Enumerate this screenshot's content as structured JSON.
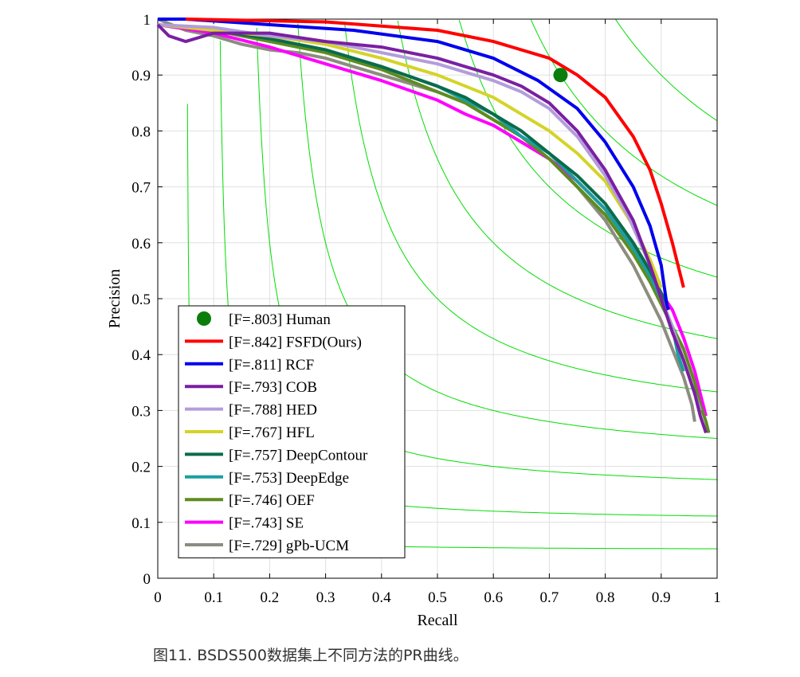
{
  "caption": "图11. BSDS500数据集上不同方法的PR曲线。",
  "chart_data": {
    "type": "line",
    "xlabel": "Recall",
    "ylabel": "Precision",
    "xlim": [
      0,
      1
    ],
    "ylim": [
      0,
      1
    ],
    "xticks": [
      "0",
      "0.1",
      "0.2",
      "0.3",
      "0.4",
      "0.5",
      "0.6",
      "0.7",
      "0.8",
      "0.9",
      "1"
    ],
    "yticks": [
      "0",
      "0.1",
      "0.2",
      "0.3",
      "0.4",
      "0.5",
      "0.6",
      "0.7",
      "0.8",
      "0.9",
      "1"
    ],
    "grid": true,
    "legend_position": "bottom-left",
    "iso_f_color": "#00dd00",
    "iso_f_contours": [
      0.1,
      0.2,
      0.3,
      0.4,
      0.5,
      0.6,
      0.7,
      0.8,
      0.9
    ],
    "human": {
      "label": "[F=.803] Human",
      "recall": 0.72,
      "precision": 0.9,
      "color": "#0a7d0a"
    },
    "series": [
      {
        "name": "[F=.842] FSFD(Ours)",
        "color": "#ff0000",
        "x": [
          0.05,
          0.3,
          0.5,
          0.6,
          0.7,
          0.75,
          0.8,
          0.85,
          0.88,
          0.9,
          0.92,
          0.94
        ],
        "y": [
          1,
          0.995,
          0.98,
          0.96,
          0.93,
          0.9,
          0.86,
          0.79,
          0.73,
          0.67,
          0.6,
          0.52
        ]
      },
      {
        "name": "[F=.811] RCF",
        "color": "#0000ee",
        "x": [
          0,
          0.05,
          0.2,
          0.35,
          0.5,
          0.6,
          0.68,
          0.75,
          0.8,
          0.85,
          0.88,
          0.9,
          0.91,
          0.913
        ],
        "y": [
          1,
          1,
          0.99,
          0.98,
          0.96,
          0.93,
          0.89,
          0.84,
          0.78,
          0.7,
          0.63,
          0.56,
          0.49,
          0.48
        ]
      },
      {
        "name": "[F=.793] COB",
        "color": "#7a1fa2",
        "x": [
          0,
          0.02,
          0.05,
          0.1,
          0.2,
          0.3,
          0.4,
          0.5,
          0.55,
          0.6,
          0.65,
          0.7,
          0.75,
          0.8,
          0.85,
          0.88,
          0.9,
          0.92,
          0.94,
          0.96,
          0.97,
          0.98
        ],
        "y": [
          0.99,
          0.97,
          0.96,
          0.975,
          0.975,
          0.96,
          0.95,
          0.93,
          0.915,
          0.9,
          0.88,
          0.85,
          0.8,
          0.73,
          0.64,
          0.56,
          0.5,
          0.44,
          0.39,
          0.33,
          0.29,
          0.26
        ]
      },
      {
        "name": "[F=.788] HED",
        "color": "#b39ddb",
        "x": [
          0,
          0.1,
          0.2,
          0.3,
          0.4,
          0.5,
          0.6,
          0.65,
          0.7,
          0.75,
          0.8,
          0.84,
          0.88,
          0.9,
          0.92,
          0.94,
          0.96,
          0.97
        ],
        "y": [
          0.99,
          0.985,
          0.97,
          0.96,
          0.94,
          0.92,
          0.89,
          0.87,
          0.84,
          0.79,
          0.72,
          0.65,
          0.56,
          0.5,
          0.45,
          0.39,
          0.33,
          0.3
        ]
      },
      {
        "name": "[F=.767] HFL",
        "color": "#d4d428",
        "x": [
          0,
          0.1,
          0.2,
          0.3,
          0.4,
          0.5,
          0.55,
          0.6,
          0.65,
          0.7,
          0.75,
          0.8,
          0.85,
          0.88,
          0.9
        ],
        "y": [
          0.99,
          0.98,
          0.97,
          0.955,
          0.93,
          0.9,
          0.88,
          0.86,
          0.83,
          0.8,
          0.76,
          0.71,
          0.63,
          0.57,
          0.52
        ]
      },
      {
        "name": "[F=.757] DeepContour",
        "color": "#0b6b4a",
        "x": [
          0,
          0.1,
          0.2,
          0.3,
          0.4,
          0.5,
          0.55,
          0.6,
          0.65,
          0.7,
          0.75,
          0.8,
          0.85,
          0.88,
          0.9,
          0.91
        ],
        "y": [
          0.99,
          0.98,
          0.965,
          0.945,
          0.915,
          0.88,
          0.86,
          0.83,
          0.8,
          0.76,
          0.72,
          0.67,
          0.6,
          0.55,
          0.51,
          0.48
        ]
      },
      {
        "name": "[F=.753] DeepEdge",
        "color": "#1a9fa0",
        "x": [
          0,
          0.1,
          0.2,
          0.3,
          0.4,
          0.5,
          0.55,
          0.6,
          0.65,
          0.7,
          0.75,
          0.8,
          0.85,
          0.88,
          0.9,
          0.92,
          0.93,
          0.94
        ],
        "y": [
          0.99,
          0.98,
          0.965,
          0.945,
          0.915,
          0.88,
          0.855,
          0.83,
          0.79,
          0.76,
          0.71,
          0.66,
          0.59,
          0.54,
          0.5,
          0.45,
          0.4,
          0.37
        ]
      },
      {
        "name": "[F=.746] OEF",
        "color": "#5e8c1e",
        "x": [
          0,
          0.1,
          0.2,
          0.3,
          0.4,
          0.5,
          0.55,
          0.6,
          0.65,
          0.7,
          0.75,
          0.8,
          0.85,
          0.88,
          0.9,
          0.92,
          0.94,
          0.96,
          0.97,
          0.98,
          0.985
        ],
        "y": [
          0.99,
          0.98,
          0.96,
          0.94,
          0.91,
          0.87,
          0.85,
          0.82,
          0.79,
          0.75,
          0.7,
          0.65,
          0.58,
          0.53,
          0.49,
          0.45,
          0.41,
          0.35,
          0.31,
          0.28,
          0.26
        ]
      },
      {
        "name": "[F=.743] SE",
        "color": "#ff00ff",
        "x": [
          0,
          0.1,
          0.2,
          0.3,
          0.4,
          0.5,
          0.55,
          0.6,
          0.65,
          0.7,
          0.75,
          0.8,
          0.85,
          0.88,
          0.9,
          0.92,
          0.94,
          0.96,
          0.97,
          0.98
        ],
        "y": [
          0.99,
          0.975,
          0.95,
          0.92,
          0.89,
          0.855,
          0.83,
          0.81,
          0.78,
          0.75,
          0.71,
          0.66,
          0.59,
          0.54,
          0.51,
          0.48,
          0.43,
          0.37,
          0.33,
          0.29
        ]
      },
      {
        "name": "[F=.729] gPb-UCM",
        "color": "#8c8c80",
        "x": [
          0,
          0.05,
          0.1,
          0.15,
          0.2,
          0.25,
          0.3,
          0.35,
          0.4,
          0.45,
          0.5,
          0.55,
          0.6,
          0.65,
          0.7,
          0.75,
          0.8,
          0.85,
          0.88,
          0.9,
          0.92,
          0.94,
          0.955,
          0.96
        ],
        "y": [
          1,
          0.98,
          0.97,
          0.955,
          0.945,
          0.94,
          0.93,
          0.915,
          0.9,
          0.885,
          0.87,
          0.85,
          0.82,
          0.79,
          0.75,
          0.7,
          0.64,
          0.56,
          0.5,
          0.46,
          0.41,
          0.36,
          0.31,
          0.28
        ]
      }
    ]
  }
}
